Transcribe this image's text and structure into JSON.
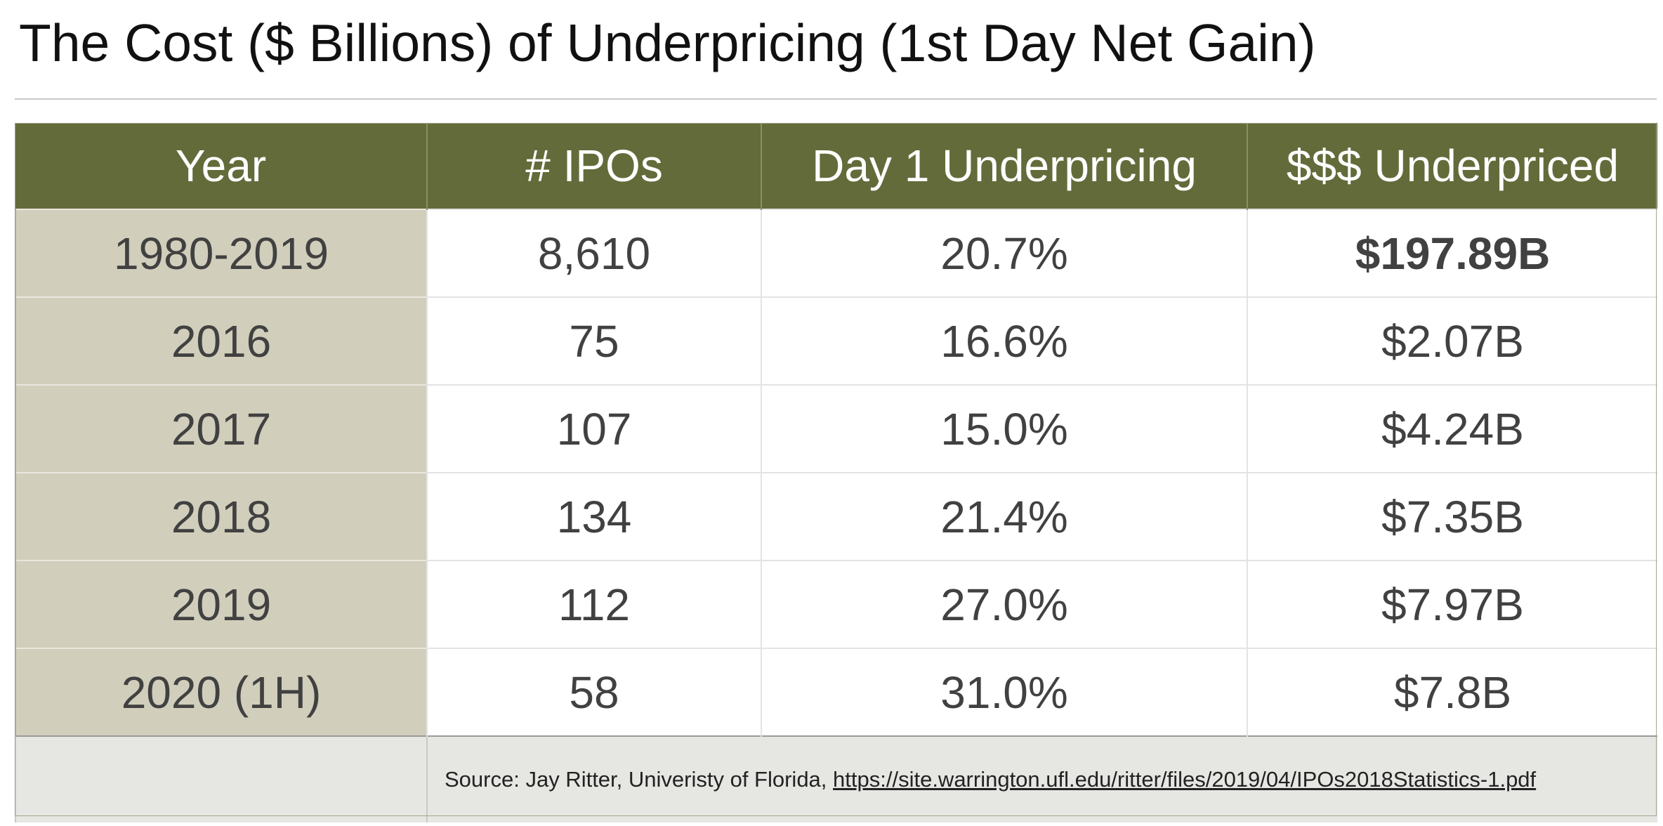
{
  "title": "The Cost ($ Billions) of Underpricing (1st Day Net Gain)",
  "table": {
    "headers": [
      "Year",
      "# IPOs",
      "Day 1 Underpricing",
      "$$$ Underpriced"
    ],
    "rows": [
      {
        "year": "1980-2019",
        "ipos": "8,610",
        "underpricing": "20.7%",
        "underpriced": "$197.89B"
      },
      {
        "year": "2016",
        "ipos": "75",
        "underpricing": "16.6%",
        "underpriced": "$2.07B"
      },
      {
        "year": "2017",
        "ipos": "107",
        "underpricing": "15.0%",
        "underpriced": "$4.24B"
      },
      {
        "year": "2018",
        "ipos": "134",
        "underpricing": "21.4%",
        "underpriced": "$7.35B"
      },
      {
        "year": "2019",
        "ipos": "112",
        "underpricing": "27.0%",
        "underpriced": "$7.97B"
      },
      {
        "year": "2020 (1H)",
        "ipos": "58",
        "underpricing": "31.0%",
        "underpriced": "$7.8B"
      }
    ],
    "source_prefix": "Source: Jay Ritter, Univeristy of Florida, ",
    "source_link": "https://site.warrington.ufl.edu/ritter/files/2019/04/IPOs2018Statistics-1.pdf"
  },
  "colors": {
    "header_bg": "#646b3a",
    "year_column_bg": "#d1cebc",
    "footer_bg": "#e6e6e3"
  }
}
